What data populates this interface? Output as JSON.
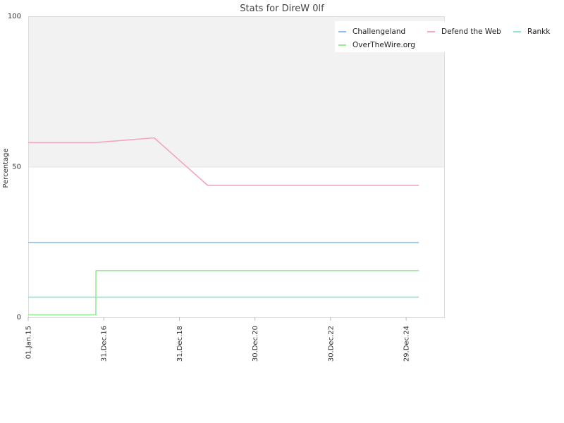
{
  "chart_data": {
    "type": "line",
    "title": "Stats for DireW 0lf",
    "ylabel": "Percentage",
    "xlabel": "",
    "ylim": [
      0,
      100
    ],
    "yticks": [
      0,
      50,
      100
    ],
    "xlim": [
      "2015-01-01",
      "2025-12-31"
    ],
    "xticks": [
      {
        "date": "2015-01-01",
        "label": "01.Jan.15"
      },
      {
        "date": "2016-12-31",
        "label": "31.Dec.16"
      },
      {
        "date": "2018-12-31",
        "label": "31.Dec.18"
      },
      {
        "date": "2020-12-30",
        "label": "30.Dec.20"
      },
      {
        "date": "2022-12-30",
        "label": "30.Dec.22"
      },
      {
        "date": "2024-12-29",
        "label": "29.Dec.24"
      }
    ],
    "shaded_band": [
      50,
      100
    ],
    "legend_position": "top-right",
    "series": [
      {
        "name": "Challengeland",
        "color": "#8fbce8",
        "points": [
          [
            "2015-01-01",
            24.8
          ],
          [
            "2025-05-01",
            24.8
          ]
        ]
      },
      {
        "name": "Defend the Web",
        "color": "#f0a6c4",
        "points": [
          [
            "2015-01-01",
            58
          ],
          [
            "2016-10-01",
            58
          ],
          [
            "2017-04-01",
            58.5
          ],
          [
            "2018-05-01",
            59.6
          ],
          [
            "2019-10-01",
            43.8
          ],
          [
            "2025-05-01",
            43.8
          ]
        ]
      },
      {
        "name": "Rankk",
        "color": "#8fe3c8",
        "points": [
          [
            "2015-01-01",
            6.7
          ],
          [
            "2025-05-01",
            6.7
          ]
        ]
      },
      {
        "name": "OverTheWire.org",
        "color": "#9aea9a",
        "points": [
          [
            "2015-01-01",
            0.8
          ],
          [
            "2016-10-15",
            0.8
          ],
          [
            "2016-10-16",
            15.5
          ],
          [
            "2025-05-01",
            15.5
          ]
        ]
      }
    ]
  }
}
